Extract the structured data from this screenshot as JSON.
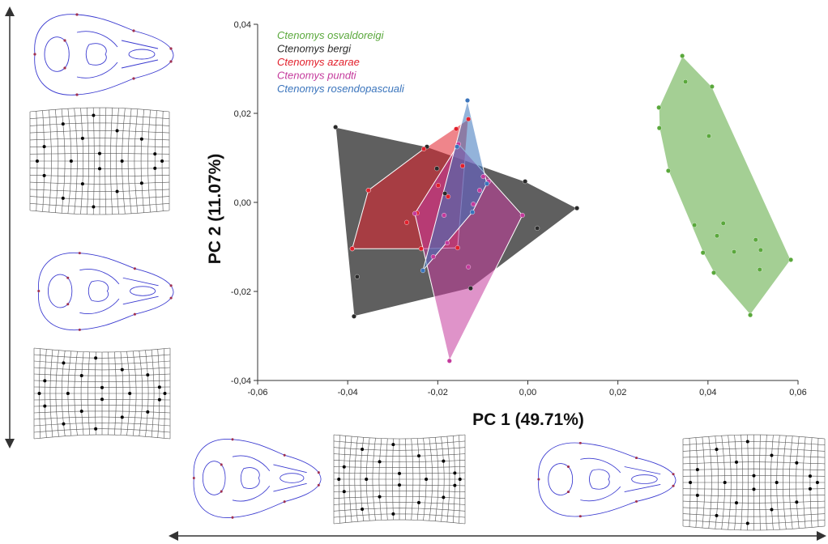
{
  "chart_data": {
    "type": "scatter",
    "x_label": "PC 1  (49.71%)",
    "y_label": "PC 2 (11.07%)",
    "xlim": [
      -0.06,
      0.06
    ],
    "ylim": [
      -0.04,
      0.04
    ],
    "xticks": [
      {
        "value": -0.06,
        "label": "-0,06"
      },
      {
        "value": -0.04,
        "label": "-0,04"
      },
      {
        "value": -0.02,
        "label": "-0,02"
      },
      {
        "value": 0,
        "label": "0,00"
      },
      {
        "value": 0.02,
        "label": "0,02"
      },
      {
        "value": 0.04,
        "label": "0,04"
      },
      {
        "value": 0.06,
        "label": "0,06"
      }
    ],
    "yticks": [
      {
        "value": -0.04,
        "label": "-0,04"
      },
      {
        "value": -0.02,
        "label": "-0,02"
      },
      {
        "value": 0,
        "label": "0,00"
      },
      {
        "value": 0.02,
        "label": "0,02"
      },
      {
        "value": 0.04,
        "label": "0,04"
      }
    ],
    "series": [
      {
        "name": "Ctenomys osvaldoreigi",
        "color": "#5aa83c",
        "x": [
          0.0343,
          0.035,
          0.0409,
          0.0291,
          0.0292,
          0.0402,
          0.0312,
          0.037,
          0.0434,
          0.042,
          0.0389,
          0.0458,
          0.0506,
          0.0517,
          0.0413,
          0.0515,
          0.0584,
          0.0494
        ],
        "y": [
          0.0329,
          0.0271,
          0.026,
          0.0213,
          0.0167,
          0.0149,
          0.0071,
          -0.0051,
          -0.0047,
          -0.0075,
          -0.0113,
          -0.0111,
          -0.0084,
          -0.0107,
          -0.0158,
          -0.0151,
          -0.0129,
          -0.0253
        ]
      },
      {
        "name": "Ctenomys bergi",
        "color": "#2a2a2a",
        "x": [
          -0.0427,
          -0.0354,
          -0.039,
          -0.0379,
          -0.0386,
          -0.0202,
          -0.0224,
          -0.0184,
          -0.0006,
          0.0109,
          0.0021,
          -0.0127
        ],
        "y": [
          0.0169,
          0.0027,
          -0.0104,
          -0.0167,
          -0.0256,
          0.0076,
          0.0125,
          0.002,
          0.0047,
          -0.0013,
          -0.0058,
          -0.0193
        ]
      },
      {
        "name": "Ctenomys azarae",
        "color": "#e2202c",
        "x": [
          -0.039,
          -0.0354,
          -0.0269,
          -0.0231,
          -0.0159,
          -0.0132,
          -0.0156,
          -0.0237,
          -0.0199,
          -0.0177,
          -0.0145,
          -0.0246
        ],
        "y": [
          -0.0104,
          0.0027,
          -0.0045,
          0.012,
          0.0165,
          0.0187,
          -0.0102,
          -0.0104,
          0.0038,
          0.0013,
          0.0082,
          -0.0024
        ]
      },
      {
        "name": "Ctenomys pundti",
        "color": "#c43a9c",
        "x": [
          -0.0174,
          -0.0012,
          -0.0087,
          -0.0154,
          -0.0186,
          -0.0121,
          -0.0099,
          -0.0132,
          -0.0179,
          -0.0251,
          -0.0107,
          -0.021
        ],
        "y": [
          -0.0356,
          -0.0029,
          0.0047,
          0.0131,
          -0.0029,
          -0.0004,
          0.0058,
          -0.0145,
          -0.0091,
          -0.0025,
          0.0027,
          -0.0122
        ]
      },
      {
        "name": "Ctenomys rosendopascuali",
        "color": "#3a74bc",
        "x": [
          -0.0134,
          -0.0233,
          -0.0091,
          -0.0157,
          -0.0123
        ],
        "y": [
          0.0229,
          -0.0153,
          0.0042,
          0.0125,
          -0.0022
        ]
      }
    ]
  }
}
